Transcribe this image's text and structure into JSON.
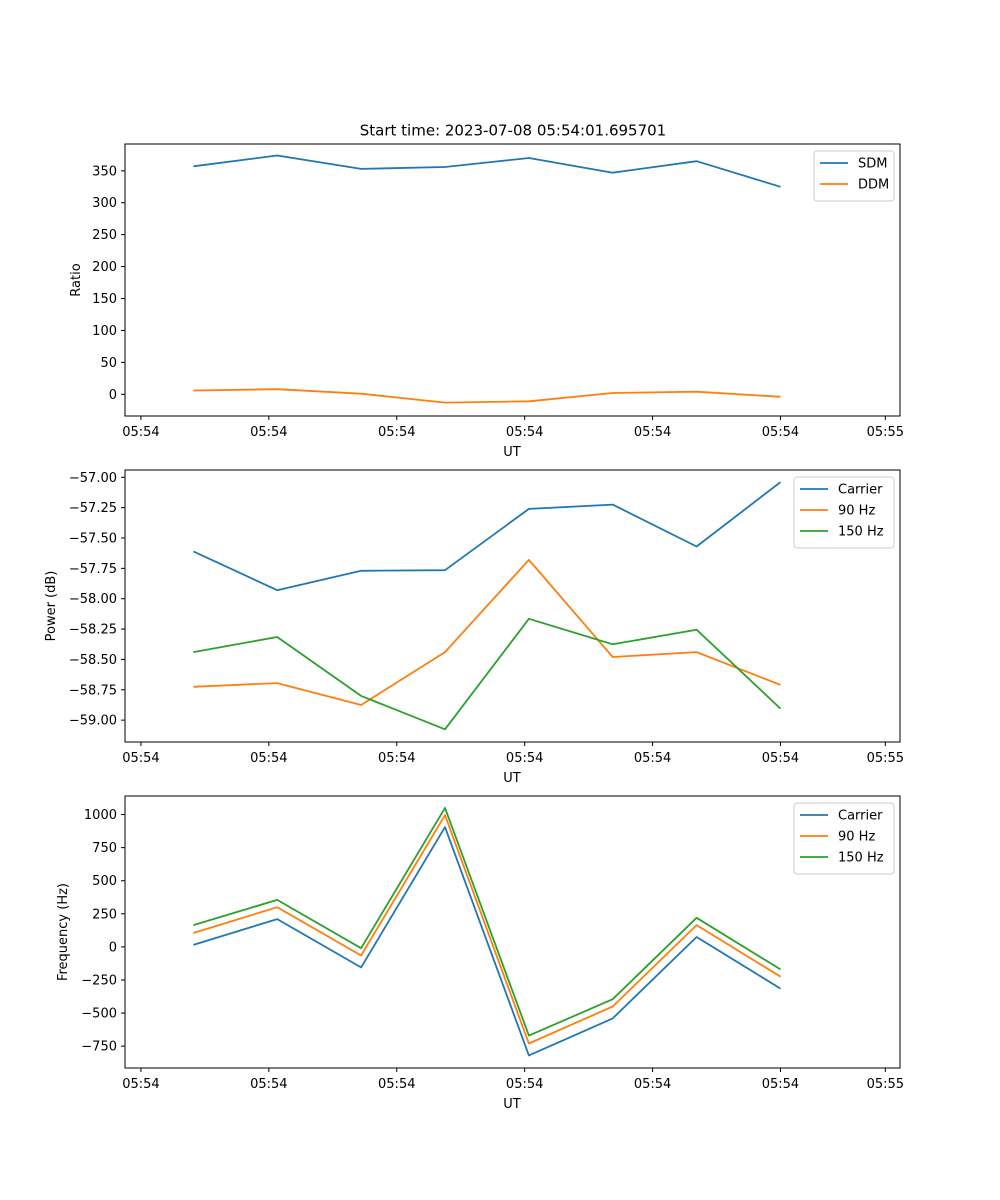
{
  "figure": {
    "title": "Start time: 2023-07-08 05:54:01.695701"
  },
  "colors": {
    "blue": "#1f77b4",
    "orange": "#ff7f0e",
    "green": "#2ca02c",
    "axis": "#000000",
    "legend_border": "#cccccc"
  },
  "chart_data": [
    {
      "type": "line",
      "title": "Start time: 2023-07-08 05:54:01.695701",
      "xlabel": "UT",
      "ylabel": "Ratio",
      "x": [
        1,
        2,
        3,
        4,
        5,
        6,
        7,
        8
      ],
      "xlim": [
        0.185,
        9.425
      ],
      "xticks": [
        0.375,
        1.9,
        3.425,
        4.95,
        6.475,
        8.0,
        9.25
      ],
      "xtick_labels": [
        "05:54",
        "05:54",
        "05:54",
        "05:54",
        "05:54",
        "05:54",
        "05:55"
      ],
      "ylim": [
        -34,
        392
      ],
      "yticks": [
        0,
        50,
        100,
        150,
        200,
        250,
        300,
        350
      ],
      "ytick_labels": [
        "0",
        "50",
        "100",
        "150",
        "200",
        "250",
        "300",
        "350"
      ],
      "legend": "top-right",
      "series": [
        {
          "name": "SDM",
          "color": "#1f77b4",
          "values": [
            357,
            374,
            353,
            356,
            370,
            347,
            365,
            325
          ]
        },
        {
          "name": "DDM",
          "color": "#ff7f0e",
          "values": [
            6,
            8,
            1,
            -13,
            -11,
            2,
            4,
            -4
          ]
        }
      ]
    },
    {
      "type": "line",
      "title": "",
      "xlabel": "UT",
      "ylabel": "Power (dB)",
      "x": [
        1,
        2,
        3,
        4,
        5,
        6,
        7,
        8
      ],
      "xlim": [
        0.185,
        9.425
      ],
      "xticks": [
        0.375,
        1.9,
        3.425,
        4.95,
        6.475,
        8.0,
        9.25
      ],
      "xtick_labels": [
        "05:54",
        "05:54",
        "05:54",
        "05:54",
        "05:54",
        "05:54",
        "05:55"
      ],
      "ylim": [
        -59.18,
        -56.94
      ],
      "yticks": [
        -59.0,
        -58.75,
        -58.5,
        -58.25,
        -58.0,
        -57.75,
        -57.5,
        -57.25,
        -57.0
      ],
      "ytick_labels": [
        "−59.00",
        "−58.75",
        "−58.50",
        "−58.25",
        "−58.00",
        "−57.75",
        "−57.50",
        "−57.25",
        "−57.00"
      ],
      "legend": "top-right",
      "series": [
        {
          "name": "Carrier",
          "color": "#1f77b4",
          "values": [
            -57.61,
            -57.93,
            -57.77,
            -57.765,
            -57.26,
            -57.225,
            -57.57,
            -57.04
          ]
        },
        {
          "name": "90 Hz",
          "color": "#ff7f0e",
          "values": [
            -58.725,
            -58.695,
            -58.875,
            -58.44,
            -57.68,
            -58.48,
            -58.44,
            -58.71
          ]
        },
        {
          "name": "150 Hz",
          "color": "#2ca02c",
          "values": [
            -58.44,
            -58.315,
            -58.8,
            -59.075,
            -58.165,
            -58.375,
            -58.255,
            -58.905
          ]
        }
      ]
    },
    {
      "type": "line",
      "title": "",
      "xlabel": "UT",
      "ylabel": "Frequency (Hz)",
      "x": [
        1,
        2,
        3,
        4,
        5,
        6,
        7,
        8
      ],
      "xlim": [
        0.185,
        9.425
      ],
      "xticks": [
        0.375,
        1.9,
        3.425,
        4.95,
        6.475,
        8.0,
        9.25
      ],
      "xtick_labels": [
        "05:54",
        "05:54",
        "05:54",
        "05:54",
        "05:54",
        "05:54",
        "05:55"
      ],
      "ylim": [
        -915,
        1140
      ],
      "yticks": [
        -750,
        -500,
        -250,
        0,
        250,
        500,
        750,
        1000
      ],
      "ytick_labels": [
        "−750",
        "−500",
        "−250",
        "0",
        "250",
        "500",
        "750",
        "1000"
      ],
      "legend": "top-right",
      "series": [
        {
          "name": "Carrier",
          "color": "#1f77b4",
          "values": [
            15,
            210,
            -155,
            905,
            -820,
            -540,
            75,
            -315
          ]
        },
        {
          "name": "90 Hz",
          "color": "#ff7f0e",
          "values": [
            105,
            300,
            -65,
            995,
            -730,
            -450,
            165,
            -225
          ]
        },
        {
          "name": "150 Hz",
          "color": "#2ca02c",
          "values": [
            165,
            355,
            -10,
            1050,
            -670,
            -395,
            220,
            -170
          ]
        }
      ]
    }
  ]
}
